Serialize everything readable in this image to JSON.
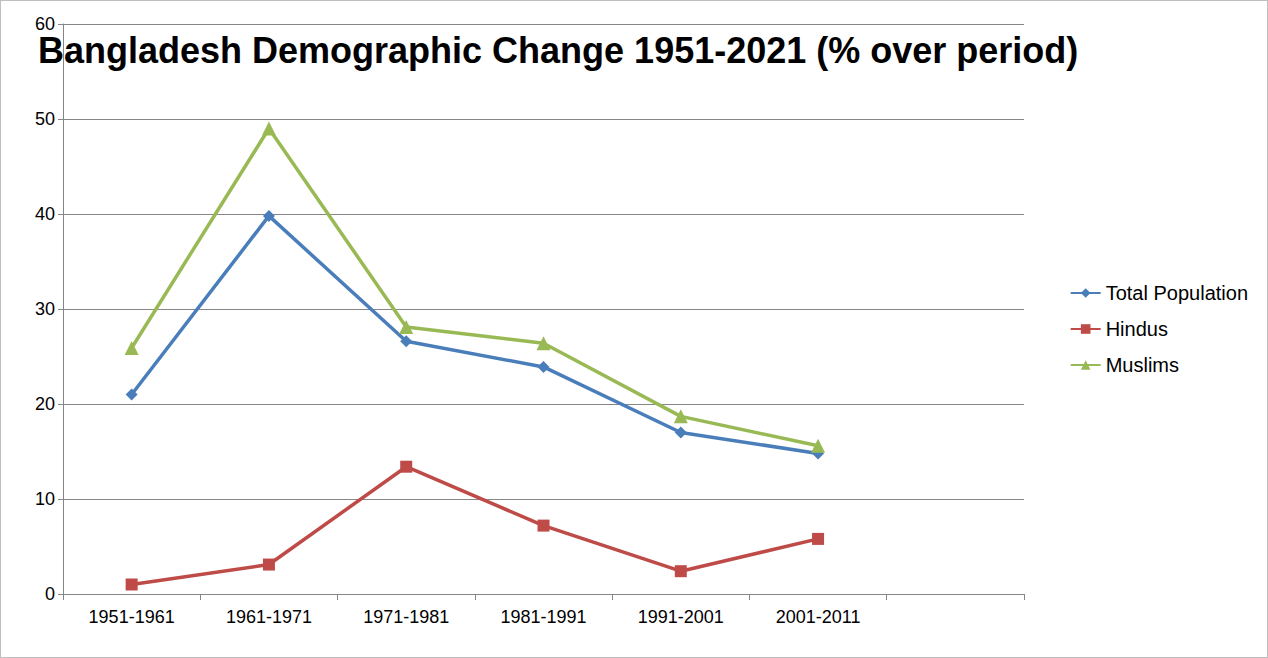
{
  "chart_data": {
    "type": "line",
    "title": "Bangladesh Demographic Change 1951-2021 (% over period)",
    "categories": [
      "1951-1961",
      "1961-1971",
      "1971-1981",
      "1981-1991",
      "1991-2001",
      "2001-2011",
      null
    ],
    "series": [
      {
        "name": "Total Population",
        "color": "#4a7ebb",
        "marker": "diamond",
        "values": [
          21.0,
          39.8,
          26.6,
          23.9,
          17.0,
          14.8,
          null
        ]
      },
      {
        "name": "Hindus",
        "color": "#be4b48",
        "marker": "square",
        "values": [
          1.0,
          3.1,
          13.4,
          7.2,
          2.4,
          5.8,
          null
        ]
      },
      {
        "name": "Muslims",
        "color": "#98b954",
        "marker": "triangle",
        "values": [
          25.9,
          49.0,
          28.1,
          26.4,
          18.7,
          15.6,
          null
        ]
      }
    ],
    "ylim": [
      0,
      60
    ],
    "yticks": [
      0,
      10,
      20,
      30,
      40,
      50,
      60
    ],
    "grid": true,
    "legend": "right"
  }
}
